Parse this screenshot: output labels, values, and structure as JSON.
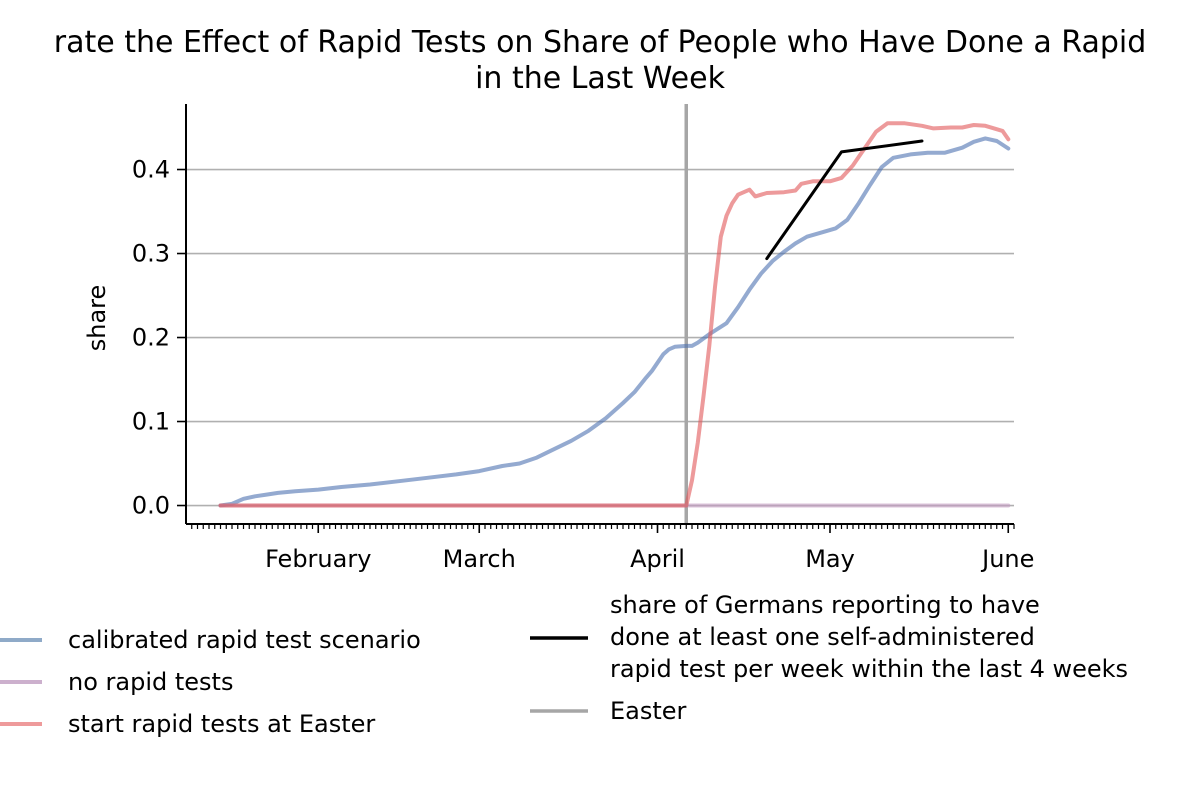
{
  "chart_data": {
    "type": "line",
    "title_line1": "rate the Effect of Rapid Tests on Share of People who Have Done a Rapid",
    "title_line2": "in the Last Week",
    "xlabel": "",
    "ylabel": "share",
    "x_range": [
      "2021-01-09",
      "2021-06-02"
    ],
    "ylim": [
      -0.022,
      0.478
    ],
    "yticks": [
      0.0,
      0.1,
      0.2,
      0.3,
      0.4
    ],
    "ytick_labels": [
      "0.0",
      "0.1",
      "0.2",
      "0.3",
      "0.4"
    ],
    "month_ticks": [
      {
        "date": "2021-02-01",
        "label": "February"
      },
      {
        "date": "2021-03-01",
        "label": "March"
      },
      {
        "date": "2021-04-01",
        "label": "April"
      },
      {
        "date": "2021-05-01",
        "label": "May"
      },
      {
        "date": "2021-06-01",
        "label": "June"
      }
    ],
    "grid": "horizontal",
    "easter_date": "2021-04-06",
    "series": [
      {
        "name": "calibrated rapid test scenario",
        "color": "#4c72b0",
        "points": [
          [
            "2021-01-15",
            0.0
          ],
          [
            "2021-01-17",
            0.002
          ],
          [
            "2021-01-19",
            0.008
          ],
          [
            "2021-01-21",
            0.011
          ],
          [
            "2021-01-23",
            0.013
          ],
          [
            "2021-01-25",
            0.015
          ],
          [
            "2021-01-28",
            0.017
          ],
          [
            "2021-02-01",
            0.019
          ],
          [
            "2021-02-05",
            0.022
          ],
          [
            "2021-02-10",
            0.025
          ],
          [
            "2021-02-15",
            0.029
          ],
          [
            "2021-02-20",
            0.033
          ],
          [
            "2021-02-25",
            0.037
          ],
          [
            "2021-03-01",
            0.041
          ],
          [
            "2021-03-05",
            0.047
          ],
          [
            "2021-03-08",
            0.05
          ],
          [
            "2021-03-11",
            0.057
          ],
          [
            "2021-03-14",
            0.067
          ],
          [
            "2021-03-17",
            0.077
          ],
          [
            "2021-03-20",
            0.089
          ],
          [
            "2021-03-23",
            0.104
          ],
          [
            "2021-03-26",
            0.122
          ],
          [
            "2021-03-28",
            0.135
          ],
          [
            "2021-03-30",
            0.152
          ],
          [
            "2021-03-31",
            0.16
          ],
          [
            "2021-04-01",
            0.17
          ],
          [
            "2021-04-02",
            0.18
          ],
          [
            "2021-04-03",
            0.186
          ],
          [
            "2021-04-04",
            0.189
          ],
          [
            "2021-04-06",
            0.19
          ],
          [
            "2021-04-07",
            0.19
          ],
          [
            "2021-04-08",
            0.194
          ],
          [
            "2021-04-10",
            0.204
          ],
          [
            "2021-04-13",
            0.217
          ],
          [
            "2021-04-15",
            0.236
          ],
          [
            "2021-04-17",
            0.257
          ],
          [
            "2021-04-19",
            0.276
          ],
          [
            "2021-04-21",
            0.291
          ],
          [
            "2021-04-23",
            0.302
          ],
          [
            "2021-04-25",
            0.312
          ],
          [
            "2021-04-27",
            0.32
          ],
          [
            "2021-04-30",
            0.326
          ],
          [
            "2021-05-02",
            0.33
          ],
          [
            "2021-05-04",
            0.34
          ],
          [
            "2021-05-06",
            0.36
          ],
          [
            "2021-05-08",
            0.382
          ],
          [
            "2021-05-10",
            0.403
          ],
          [
            "2021-05-12",
            0.414
          ],
          [
            "2021-05-15",
            0.418
          ],
          [
            "2021-05-18",
            0.42
          ],
          [
            "2021-05-21",
            0.42
          ],
          [
            "2021-05-24",
            0.426
          ],
          [
            "2021-05-26",
            0.433
          ],
          [
            "2021-05-28",
            0.437
          ],
          [
            "2021-05-30",
            0.434
          ],
          [
            "2021-06-01",
            0.425
          ]
        ]
      },
      {
        "name": "no rapid tests",
        "color": "#c39bc1",
        "points": [
          [
            "2021-01-15",
            0.0
          ],
          [
            "2021-06-01",
            0.0
          ]
        ]
      },
      {
        "name": "start rapid tests at Easter",
        "color": "#e15759",
        "points": [
          [
            "2021-01-15",
            0.0
          ],
          [
            "2021-04-06",
            0.0
          ],
          [
            "2021-04-07",
            0.03
          ],
          [
            "2021-04-08",
            0.075
          ],
          [
            "2021-04-09",
            0.13
          ],
          [
            "2021-04-10",
            0.19
          ],
          [
            "2021-04-11",
            0.26
          ],
          [
            "2021-04-12",
            0.32
          ],
          [
            "2021-04-13",
            0.345
          ],
          [
            "2021-04-14",
            0.36
          ],
          [
            "2021-04-15",
            0.37
          ],
          [
            "2021-04-17",
            0.376
          ],
          [
            "2021-04-18",
            0.368
          ],
          [
            "2021-04-20",
            0.372
          ],
          [
            "2021-04-23",
            0.373
          ],
          [
            "2021-04-25",
            0.375
          ],
          [
            "2021-04-26",
            0.383
          ],
          [
            "2021-04-28",
            0.386
          ],
          [
            "2021-05-01",
            0.386
          ],
          [
            "2021-05-03",
            0.39
          ],
          [
            "2021-05-05",
            0.405
          ],
          [
            "2021-05-07",
            0.425
          ],
          [
            "2021-05-09",
            0.445
          ],
          [
            "2021-05-11",
            0.455
          ],
          [
            "2021-05-14",
            0.455
          ],
          [
            "2021-05-17",
            0.452
          ],
          [
            "2021-05-19",
            0.449
          ],
          [
            "2021-05-22",
            0.45
          ],
          [
            "2021-05-24",
            0.45
          ],
          [
            "2021-05-26",
            0.453
          ],
          [
            "2021-05-28",
            0.452
          ],
          [
            "2021-05-31",
            0.446
          ],
          [
            "2021-06-01",
            0.436
          ]
        ]
      },
      {
        "name": "share of Germans reporting to have done at least one self-administered rapid test per week within the last 4 weeks",
        "color": "#000000",
        "points": [
          [
            "2021-04-20",
            0.294
          ],
          [
            "2021-05-03",
            0.421
          ],
          [
            "2021-05-17",
            0.434
          ]
        ]
      }
    ],
    "legend": {
      "placement": "bottom",
      "left_column": [
        {
          "label": "calibrated rapid test scenario",
          "color": "#8faac8"
        },
        {
          "label": "no rapid tests",
          "color": "#ccb0cd"
        },
        {
          "label": "start rapid tests at Easter",
          "color": "#ee9a9b"
        }
      ],
      "right_column": [
        {
          "lines": [
            "share of Germans reporting to have",
            "done at least one self-administered",
            "rapid test per week within the last 4 weeks"
          ],
          "color": "#000000"
        },
        {
          "lines": [
            "Easter"
          ],
          "color": "#a6a6a6"
        }
      ]
    }
  }
}
